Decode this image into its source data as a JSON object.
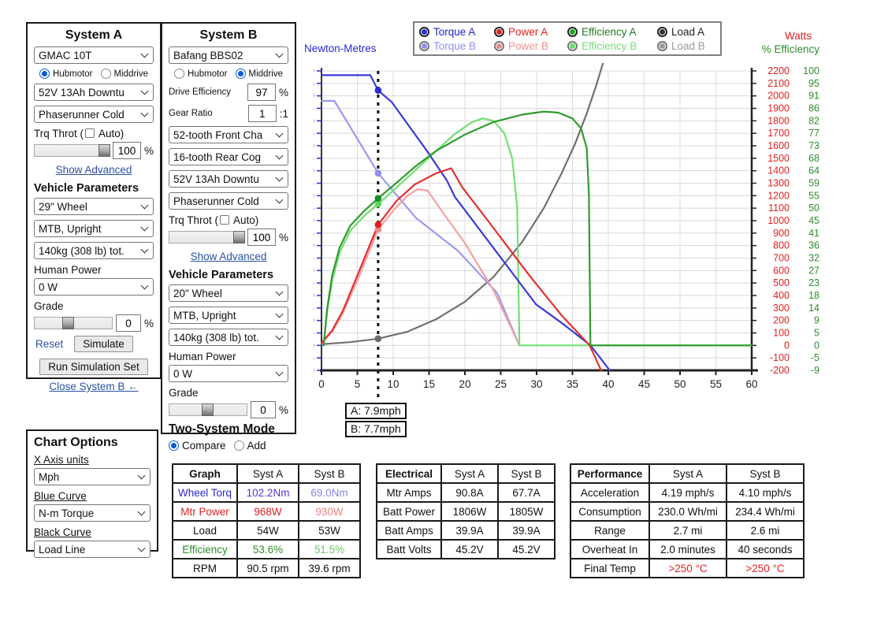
{
  "system_a": {
    "title": "System A",
    "motor": "GMAC 10T",
    "hubmotor": "Hubmotor",
    "middrive": "Middrive",
    "battery": "52V 13Ah Downtu",
    "controller": "Phaserunner Cold",
    "trq_throt_prefix": "Trq Throt (",
    "trq_throt_suffix": "Auto)",
    "throttle_value": "100",
    "pct": "%",
    "show_advanced": "Show Advanced",
    "vehicle_params": "Vehicle Parameters",
    "wheel": "29\"  Wheel",
    "position": "MTB, Upright",
    "weight": "140kg (308 lb) tot.",
    "human_power_label": "Human Power",
    "human_power": "0 W",
    "grade_label": "Grade",
    "grade_value": "0",
    "reset": "Reset",
    "simulate": "Simulate",
    "run_sim": "Run Simulation Set",
    "close_b": "Close System B ←"
  },
  "system_b": {
    "title": "System B",
    "motor": "Bafang BBS02",
    "hubmotor": "Hubmotor",
    "middrive": "Middrive",
    "drive_efficiency_label": "Drive Efficiency",
    "drive_efficiency": "97",
    "pct": "%",
    "gear_ratio_label": "Gear Ratio",
    "gear_ratio": "1",
    "gear_ratio_suffix": ":1",
    "chainring": "52-tooth Front Cha",
    "cog": "16-tooth Rear Cog",
    "battery": "52V 13Ah Downtu",
    "controller": "Phaserunner Cold",
    "trq_throt_prefix": "Trq Throt (",
    "trq_throt_suffix": "Auto)",
    "throttle_value": "100",
    "show_advanced": "Show Advanced",
    "vehicle_params": "Vehicle Parameters",
    "wheel": "20\"  Wheel",
    "position": "MTB, Upright",
    "weight": "140kg (308 lb) tot.",
    "human_power_label": "Human Power",
    "human_power": "0 W",
    "grade_label": "Grade",
    "grade_value": "0",
    "two_system": "Two-System Mode",
    "compare": "Compare",
    "add": "Add"
  },
  "chart_options": {
    "title": "Chart Options",
    "x_axis_label": "X Axis units",
    "x_axis": "Mph",
    "blue_label": "Blue Curve",
    "blue": "N-m Torque",
    "black_label": "Black Curve",
    "black": "Load Line"
  },
  "legend": {
    "rows": [
      [
        {
          "label": "Torque A",
          "color": "#2222cc",
          "dot": "#2a2ae0",
          "ring": "#222222"
        },
        {
          "label": "Power A",
          "color": "#e02020",
          "dot": "#e02020",
          "ring": "#222222"
        },
        {
          "label": "Efficiency A",
          "color": "#1e7d1e",
          "dot": "#22aa22",
          "ring": "#222222"
        },
        {
          "label": "Load A",
          "color": "#222222",
          "dot": "#333333",
          "ring": "#222222"
        }
      ],
      [
        {
          "label": "Torque B",
          "color": "#9090ee",
          "dot": "#8f8fee",
          "ring": "#777777"
        },
        {
          "label": "Power B",
          "color": "#f09090",
          "dot": "#ee8888",
          "ring": "#777777"
        },
        {
          "label": "Efficiency B",
          "color": "#77dd77",
          "dot": "#66dd66",
          "ring": "#777777"
        },
        {
          "label": "Load B",
          "color": "#999999",
          "dot": "#999999",
          "ring": "#777777"
        }
      ]
    ]
  },
  "axis_titles": {
    "left": "Newton-Metres",
    "right_watts": "Watts",
    "right_eff": "% Efficiency"
  },
  "cursor_labels": {
    "a": "A: 7.9mph",
    "b": "B: 7.7mph"
  },
  "tables": {
    "graph": {
      "widths": [
        82,
        78,
        78
      ],
      "header": [
        {
          "t": "Graph",
          "bold": true
        },
        {
          "t": "Syst A"
        },
        {
          "t": "Syst B"
        }
      ],
      "rows": [
        [
          {
            "t": "Wheel Torq",
            "c": "#2929cc"
          },
          {
            "t": "102.2Nm",
            "c": "#4a3bd6"
          },
          {
            "t": "69.0Nm",
            "c": "#8585ea"
          }
        ],
        [
          {
            "t": "Mtr Power",
            "c": "#e02020"
          },
          {
            "t": "968W",
            "c": "#e02020"
          },
          {
            "t": "930W",
            "c": "#f08080"
          }
        ],
        [
          {
            "t": "Load"
          },
          {
            "t": "54W"
          },
          {
            "t": "53W"
          }
        ],
        [
          {
            "t": "Efficiency",
            "c": "#2e8b2e"
          },
          {
            "t": "53.6%",
            "c": "#2e8b2e"
          },
          {
            "t": "51.5%",
            "c": "#66cc66"
          }
        ],
        [
          {
            "t": "RPM"
          },
          {
            "t": "90.5 rpm"
          },
          {
            "t": "39.6 rpm"
          }
        ]
      ]
    },
    "electrical": {
      "widths": [
        82,
        72,
        72
      ],
      "header": [
        {
          "t": "Electrical",
          "bold": true
        },
        {
          "t": "Syst A"
        },
        {
          "t": "Syst B"
        }
      ],
      "rows": [
        [
          {
            "t": "Mtr Amps"
          },
          {
            "t": "90.8A"
          },
          {
            "t": "67.7A"
          }
        ],
        [
          {
            "t": "Batt Power"
          },
          {
            "t": "1806W"
          },
          {
            "t": "1805W"
          }
        ],
        [
          {
            "t": "Batt Amps"
          },
          {
            "t": "39.9A"
          },
          {
            "t": "39.9A"
          }
        ],
        [
          {
            "t": "Batt Volts"
          },
          {
            "t": "45.2V"
          },
          {
            "t": "45.2V"
          }
        ]
      ]
    },
    "performance": {
      "widths": [
        100,
        98,
        98
      ],
      "header": [
        {
          "t": "Performance",
          "bold": true
        },
        {
          "t": "Syst A"
        },
        {
          "t": "Syst B"
        }
      ],
      "rows": [
        [
          {
            "t": "Acceleration"
          },
          {
            "t": "4.19 mph/s"
          },
          {
            "t": "4.10 mph/s"
          }
        ],
        [
          {
            "t": "Consumption"
          },
          {
            "t": "230.0 Wh/mi"
          },
          {
            "t": "234.4 Wh/mi"
          }
        ],
        [
          {
            "t": "Range"
          },
          {
            "t": "2.7 mi"
          },
          {
            "t": "2.6 mi"
          }
        ],
        [
          {
            "t": "Overheat In"
          },
          {
            "t": "2.0 minutes"
          },
          {
            "t": "40 seconds"
          }
        ],
        [
          {
            "t": "Final Temp"
          },
          {
            "t": ">250 °C",
            "c": "#e82020"
          },
          {
            "t": ">250 °C",
            "c": "#e82020"
          }
        ]
      ]
    }
  },
  "chart_data": {
    "type": "line",
    "title": "",
    "xlabel": "Mph",
    "x_axis": {
      "min": 0,
      "max": 60,
      "tick_step": 5
    },
    "y_left": {
      "label": "Newton-Metres",
      "min": -10,
      "max": 110,
      "tick_step": 5,
      "color": "#2929d4"
    },
    "y_right_watts": {
      "label": "Watts",
      "min": -200,
      "max": 2200,
      "tick_step": 100,
      "color": "#e02020"
    },
    "y_right_eff": {
      "label": "% Efficiency",
      "color": "#2e8b2e",
      "ticks": [
        100,
        95,
        91,
        86,
        82,
        77,
        73,
        68,
        64,
        59,
        55,
        50,
        45,
        41,
        36,
        32,
        27,
        23,
        18,
        14,
        9,
        5,
        0,
        -5,
        -9
      ]
    },
    "cursor": {
      "x": 7.9
    },
    "series": [
      {
        "name": "Load A",
        "axis": "watts",
        "color": "#707070",
        "points": [
          [
            0,
            10
          ],
          [
            4,
            26
          ],
          [
            7.9,
            54
          ],
          [
            12,
            110
          ],
          [
            16,
            210
          ],
          [
            20,
            350
          ],
          [
            24,
            550
          ],
          [
            28,
            830
          ],
          [
            31,
            1100
          ],
          [
            33.5,
            1380
          ],
          [
            35.4,
            1620
          ],
          [
            37,
            1860
          ],
          [
            38.3,
            2080
          ],
          [
            39.3,
            2270
          ]
        ]
      },
      {
        "name": "Torque B",
        "axis": "nm",
        "color": "#9a9af0",
        "points": [
          [
            0,
            98
          ],
          [
            1.8,
            98
          ],
          [
            7.9,
            69
          ],
          [
            13.2,
            51
          ],
          [
            19,
            38
          ],
          [
            24.5,
            21
          ],
          [
            27.6,
            0
          ]
        ]
      },
      {
        "name": "Power B",
        "axis": "watts",
        "color": "#f4a0a0",
        "points": [
          [
            0,
            20
          ],
          [
            1.5,
            110
          ],
          [
            3,
            260
          ],
          [
            5,
            520
          ],
          [
            7.9,
            930
          ],
          [
            10,
            1080
          ],
          [
            12,
            1200
          ],
          [
            13.4,
            1252
          ],
          [
            14.8,
            1240
          ],
          [
            16.5,
            1100
          ],
          [
            20,
            820
          ],
          [
            24,
            440
          ],
          [
            27.6,
            0
          ]
        ]
      },
      {
        "name": "Efficiency B",
        "axis": "pct",
        "color": "#72df72",
        "points": [
          [
            0.3,
            0
          ],
          [
            0.8,
            12.7
          ],
          [
            1.5,
            23.6
          ],
          [
            2.5,
            33.6
          ],
          [
            4,
            41.8
          ],
          [
            6,
            47.3
          ],
          [
            7.9,
            51.5
          ],
          [
            10,
            56.4
          ],
          [
            13,
            63.6
          ],
          [
            16,
            70.9
          ],
          [
            18.5,
            76.8
          ],
          [
            21,
            81.4
          ],
          [
            22.5,
            82.7
          ],
          [
            24,
            81.8
          ],
          [
            25.5,
            77.3
          ],
          [
            26.6,
            68.2
          ],
          [
            27.3,
            50
          ],
          [
            27.6,
            0
          ],
          [
            60,
            0
          ]
        ]
      },
      {
        "name": "Torque A",
        "axis": "nm",
        "color": "#3a3ad8",
        "points": [
          [
            0,
            108.3
          ],
          [
            6.8,
            108.3
          ],
          [
            7.9,
            102.2
          ],
          [
            9.8,
            97.5
          ],
          [
            14.5,
            78.8
          ],
          [
            17.5,
            66
          ],
          [
            18.6,
            59.5
          ],
          [
            24,
            39
          ],
          [
            29.9,
            16.5
          ],
          [
            33.5,
            9
          ],
          [
            37.5,
            0
          ],
          [
            38.6,
            -4
          ],
          [
            40.2,
            -10
          ]
        ]
      },
      {
        "name": "Power A",
        "axis": "watts",
        "color": "#e33030",
        "points": [
          [
            0,
            20
          ],
          [
            1.5,
            120
          ],
          [
            3,
            280
          ],
          [
            5,
            560
          ],
          [
            7.9,
            968
          ],
          [
            10.5,
            1160
          ],
          [
            13,
            1290
          ],
          [
            16,
            1380
          ],
          [
            18.1,
            1420
          ],
          [
            19.6,
            1270
          ],
          [
            24,
            940
          ],
          [
            29,
            560
          ],
          [
            33.5,
            240
          ],
          [
            37.4,
            0
          ],
          [
            38.2,
            -100
          ],
          [
            39,
            -200
          ]
        ]
      },
      {
        "name": "Efficiency A",
        "axis": "pct",
        "color": "#2f9b2f",
        "points": [
          [
            0.3,
            0
          ],
          [
            0.8,
            13.6
          ],
          [
            1.5,
            25.5
          ],
          [
            2.5,
            35.5
          ],
          [
            4,
            43.6
          ],
          [
            6,
            49.1
          ],
          [
            7.9,
            53.6
          ],
          [
            10,
            58.2
          ],
          [
            13,
            65
          ],
          [
            16,
            70.9
          ],
          [
            20,
            76.8
          ],
          [
            24,
            81.4
          ],
          [
            28,
            84.1
          ],
          [
            31,
            85.2
          ],
          [
            33,
            84.8
          ],
          [
            35,
            82.7
          ],
          [
            36.2,
            79.1
          ],
          [
            37,
            71.8
          ],
          [
            37.3,
            54.5
          ],
          [
            37.5,
            0
          ],
          [
            60,
            0
          ]
        ]
      }
    ],
    "markers": [
      {
        "series": "Load B",
        "x": 7.9,
        "axis": "watts",
        "value": 53,
        "color": "#a8a8a8"
      },
      {
        "series": "Load A",
        "x": 7.9,
        "axis": "watts",
        "value": 54,
        "color": "#6b6b6b"
      },
      {
        "series": "Torque B",
        "x": 7.9,
        "axis": "nm",
        "value": 69.0,
        "color": "#8f8fee"
      },
      {
        "series": "Torque A",
        "x": 7.9,
        "axis": "nm",
        "value": 102.2,
        "color": "#2a2ae0"
      },
      {
        "series": "Efficiency B",
        "x": 7.9,
        "axis": "pct",
        "value": 51.5,
        "color": "#58d858"
      },
      {
        "series": "Efficiency A",
        "x": 7.9,
        "axis": "pct",
        "value": 53.6,
        "color": "#1f8c1f"
      },
      {
        "series": "Power B",
        "x": 7.9,
        "axis": "watts",
        "value": 930,
        "color": "#f08888"
      },
      {
        "series": "Power A",
        "x": 7.9,
        "axis": "watts",
        "value": 968,
        "color": "#e02020"
      }
    ]
  }
}
